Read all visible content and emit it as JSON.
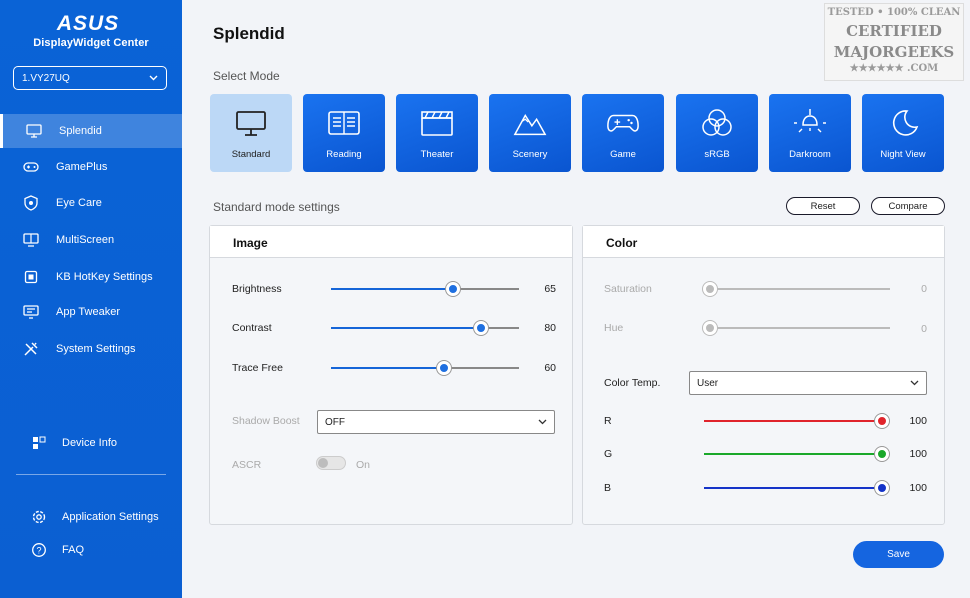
{
  "sidebar": {
    "logo_text": "ASUS",
    "brand": "DisplayWidget Center",
    "device": "1.VY27UQ",
    "items": [
      {
        "label": "Splendid",
        "icon": "monitor-icon"
      },
      {
        "label": "GamePlus",
        "icon": "gamepad-icon"
      },
      {
        "label": "Eye Care",
        "icon": "shield-icon"
      },
      {
        "label": "MultiScreen",
        "icon": "multiscreen-icon"
      },
      {
        "label": "KB HotKey Settings",
        "icon": "keyboard-icon"
      },
      {
        "label": "App Tweaker",
        "icon": "app-tweaker-icon"
      },
      {
        "label": "System Settings",
        "icon": "tools-icon"
      }
    ],
    "device_info": "Device Info",
    "app_settings": "Application Settings",
    "faq": "FAQ"
  },
  "watermark": {
    "line1": "TESTED • 100% CLEAN",
    "line2": "CERTIFIED",
    "line3": "MAJORGEEKS",
    "line4": "★★★★★★ .COM"
  },
  "main": {
    "title": "Splendid",
    "select_mode_label": "Select Mode",
    "modes": [
      {
        "label": "Standard",
        "icon": "monitor-icon"
      },
      {
        "label": "Reading",
        "icon": "book-icon"
      },
      {
        "label": "Theater",
        "icon": "clapperboard-icon"
      },
      {
        "label": "Scenery",
        "icon": "mountain-icon"
      },
      {
        "label": "Game",
        "icon": "gamepad-icon"
      },
      {
        "label": "sRGB",
        "icon": "rgb-circles-icon"
      },
      {
        "label": "Darkroom",
        "icon": "lamp-icon"
      },
      {
        "label": "Night View",
        "icon": "moon-icon"
      }
    ],
    "settings_label": "Standard mode settings",
    "reset_label": "Reset",
    "compare_label": "Compare",
    "image": {
      "title": "Image",
      "brightness": {
        "label": "Brightness",
        "value": 65
      },
      "contrast": {
        "label": "Contrast",
        "value": 80
      },
      "trace_free": {
        "label": "Trace Free",
        "value": 60
      },
      "shadow_boost": {
        "label": "Shadow Boost",
        "value": "OFF"
      },
      "ascr": {
        "label": "ASCR",
        "state": "On"
      }
    },
    "color": {
      "title": "Color",
      "saturation": {
        "label": "Saturation",
        "value": 0
      },
      "hue": {
        "label": "Hue",
        "value": 0
      },
      "color_temp": {
        "label": "Color Temp.",
        "value": "User"
      },
      "r": {
        "label": "R",
        "value": 100,
        "color": "#e0242c"
      },
      "g": {
        "label": "G",
        "value": 100,
        "color": "#1aa82a"
      },
      "b": {
        "label": "B",
        "value": 100,
        "color": "#1433c8"
      }
    },
    "save_label": "Save"
  }
}
